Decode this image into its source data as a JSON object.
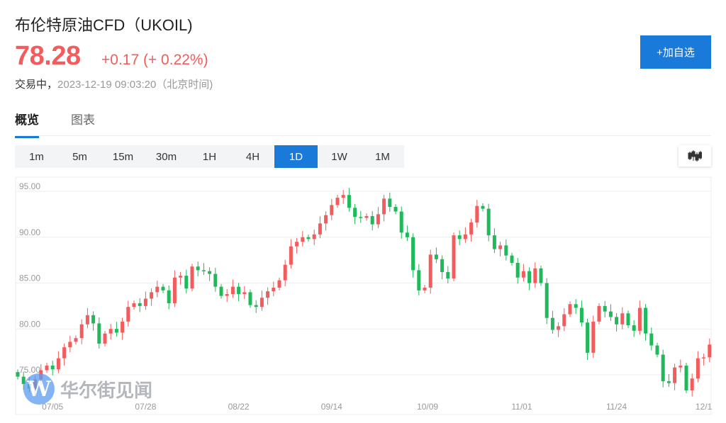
{
  "header": {
    "title": "布伦特原油CFD（UKOIL)",
    "price": "78.28",
    "change": "+0.17 (+ 0.22%)",
    "status": "交易中，",
    "timestamp": "2023-12-19 09:03:20（北京时间)",
    "add_button": "+加自选"
  },
  "tabs": [
    {
      "label": "概览",
      "active": true
    },
    {
      "label": "图表",
      "active": false
    }
  ],
  "periods": [
    {
      "label": "1m"
    },
    {
      "label": "5m"
    },
    {
      "label": "15m"
    },
    {
      "label": "30m"
    },
    {
      "label": "1H"
    },
    {
      "label": "4H"
    },
    {
      "label": "1D",
      "active": true
    },
    {
      "label": "1W"
    },
    {
      "label": "1M"
    }
  ],
  "watermark": "华尔街见闻",
  "colors": {
    "up": "#f25c5c",
    "down": "#1fb85a",
    "accent": "#1a7ad9"
  },
  "chart_data": {
    "type": "candlestick",
    "ylim": [
      73,
      96.5
    ],
    "yticks": [
      "95.00",
      "90.00",
      "85.00",
      "80.00",
      "75.00"
    ],
    "ytick_values": [
      95,
      90,
      85,
      80,
      75
    ],
    "xticks": [
      {
        "label": "07/05",
        "index": 6
      },
      {
        "label": "07/28",
        "index": 22
      },
      {
        "label": "08/22",
        "index": 38
      },
      {
        "label": "09/14",
        "index": 54
      },
      {
        "label": "10/09",
        "index": 70.5
      },
      {
        "label": "11/01",
        "index": 86.7
      },
      {
        "label": "11/24",
        "index": 103
      },
      {
        "label": "12/1",
        "index": 118
      }
    ],
    "open_first": 75.3,
    "closes": [
      74.8,
      74,
      73.5,
      74.5,
      75.5,
      76,
      75.6,
      76.8,
      78,
      78.6,
      79,
      80.5,
      81.5,
      80.6,
      78.4,
      79.5,
      80,
      79.6,
      80.8,
      82.4,
      82.8,
      82.5,
      83.3,
      84,
      84.6,
      84.2,
      82.8,
      85.6,
      85.8,
      84.4,
      86.8,
      86.4,
      86.3,
      86,
      84.6,
      83.6,
      83.8,
      84.6,
      83.8,
      84,
      82.6,
      82.4,
      83.4,
      84.1,
      84.5,
      85.3,
      87,
      89,
      89.5,
      90,
      89.8,
      90.3,
      91.5,
      92.4,
      93.5,
      94.3,
      94.6,
      93.2,
      92.2,
      92.1,
      92.3,
      91.4,
      92.5,
      94.2,
      93.3,
      92.8,
      90.5,
      90,
      86.4,
      84.2,
      84.5,
      88.1,
      87.6,
      86.2,
      85.5,
      90.2,
      89.8,
      90.3,
      91.6,
      93.4,
      93.1,
      90.2,
      88.7,
      89.1,
      88,
      87.2,
      85.6,
      86.3,
      85,
      86.6,
      85,
      81.2,
      79.9,
      80.3,
      81.6,
      82.7,
      82.3,
      80.7,
      77.4,
      80.8,
      82.5,
      81.9,
      81.3,
      80.5,
      81.7,
      80.4,
      79.8,
      82.3,
      79.5,
      78.2,
      77.2,
      74.3,
      74.1,
      75.8,
      76,
      73.3,
      74.6,
      76.8,
      76.9,
      78.3
    ]
  }
}
